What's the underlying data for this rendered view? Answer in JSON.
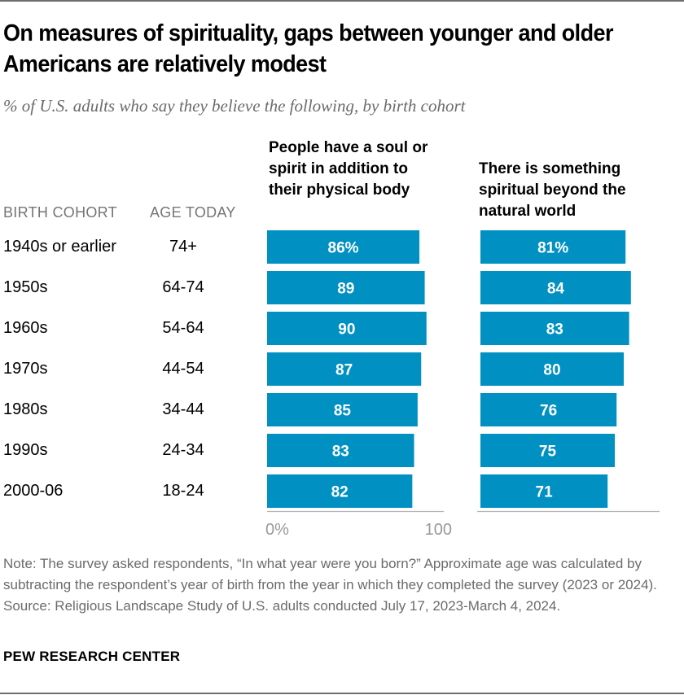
{
  "header": {
    "title": "On measures of spirituality, gaps between younger and older Americans are relatively modest",
    "subtitle": "% of U.S. adults who say they believe the following, by birth cohort"
  },
  "columns": {
    "cohort_header": "BIRTH COHORT",
    "age_header": "AGE TODAY"
  },
  "rows": [
    {
      "cohort": "1940s or earlier",
      "age": "74+"
    },
    {
      "cohort": "1950s",
      "age": "64-74"
    },
    {
      "cohort": "1960s",
      "age": "54-64"
    },
    {
      "cohort": "1970s",
      "age": "44-54"
    },
    {
      "cohort": "1980s",
      "age": "34-44"
    },
    {
      "cohort": "1990s",
      "age": "24-34"
    },
    {
      "cohort": "2000-06",
      "age": "18-24"
    }
  ],
  "chart_data": {
    "type": "bar",
    "orientation": "horizontal",
    "title": "On measures of spirituality, gaps between younger and older Americans are relatively modest",
    "subtitle": "% of U.S. adults who say they believe the following, by birth cohort",
    "categories": [
      "1940s or earlier",
      "1950s",
      "1960s",
      "1970s",
      "1980s",
      "1990s",
      "2000-06"
    ],
    "series": [
      {
        "name": "People have a soul or spirit in addition to their physical body",
        "values": [
          86,
          89,
          90,
          87,
          85,
          83,
          82
        ],
        "labels": [
          "86%",
          "89",
          "90",
          "87",
          "85",
          "83",
          "82"
        ]
      },
      {
        "name": "There is something spiritual beyond the natural world",
        "values": [
          81,
          84,
          83,
          80,
          76,
          75,
          71
        ],
        "labels": [
          "81%",
          "84",
          "83",
          "80",
          "76",
          "75",
          "71"
        ]
      }
    ],
    "xlim": [
      0,
      100
    ],
    "x_ticks": [
      "0%",
      "100"
    ],
    "bar_color": "#0090c2",
    "grid": false,
    "legend": "none"
  },
  "notes": {
    "note": "Note: The survey asked respondents, “In what year were you born?” Approximate age was calculated by subtracting the respondent’s year of birth from the year in which they completed the survey (2023 or 2024).",
    "source": "Source: Religious Landscape Study of U.S. adults conducted July 17, 2023-March 4, 2024.",
    "brand": "PEW RESEARCH CENTER"
  }
}
